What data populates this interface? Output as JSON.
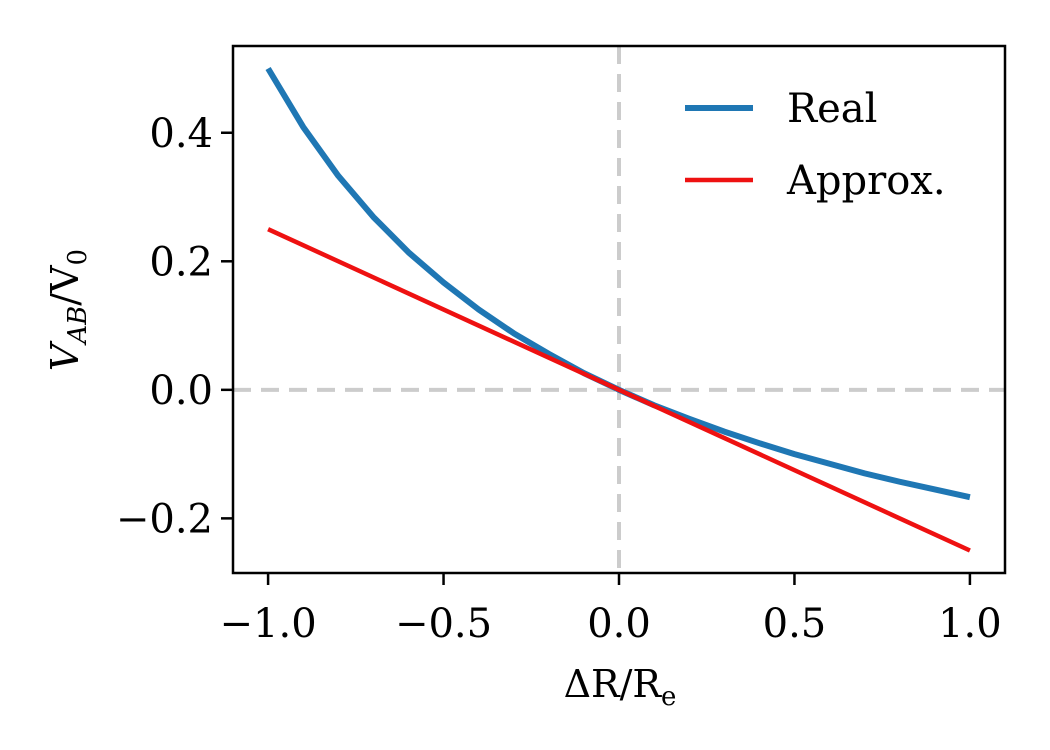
{
  "chart_data": {
    "type": "line",
    "title": "",
    "xlabel": "ΔR/R",
    "xlabel_sub": "e",
    "ylabel": "V",
    "ylabel_sub": "AB",
    "ylabel_tail": "/V",
    "ylabel_tail_sub": "0",
    "xlim": [
      -1.1,
      1.1
    ],
    "ylim": [
      -0.285,
      0.535
    ],
    "x_ticks": [
      -1.0,
      -0.5,
      0.0,
      0.5,
      1.0
    ],
    "x_tick_labels": [
      "−1.0",
      "−0.5",
      "0.0",
      "0.5",
      "1.0"
    ],
    "y_ticks": [
      -0.2,
      0.0,
      0.2,
      0.4
    ],
    "y_tick_labels": [
      "−0.2",
      "0.0",
      "0.2",
      "0.4"
    ],
    "grid": false,
    "reference_lines": [
      {
        "orientation": "vertical",
        "value": 0.0,
        "style": "dashed",
        "color": "#cccccc"
      },
      {
        "orientation": "horizontal",
        "value": 0.0,
        "style": "dashed",
        "color": "#cccccc"
      }
    ],
    "legend_position": "top-right",
    "series": [
      {
        "name": "Real",
        "color": "#1f77b4",
        "x": [
          -1.0,
          -0.9,
          -0.8,
          -0.7,
          -0.6,
          -0.5,
          -0.4,
          -0.3,
          -0.2,
          -0.1,
          0.0,
          0.1,
          0.2,
          0.3,
          0.4,
          0.5,
          0.6,
          0.7,
          0.8,
          0.9,
          1.0
        ],
        "y": [
          0.5,
          0.409,
          0.333,
          0.269,
          0.214,
          0.167,
          0.125,
          0.088,
          0.056,
          0.026,
          0.0,
          -0.024,
          -0.045,
          -0.065,
          -0.083,
          -0.1,
          -0.115,
          -0.13,
          -0.143,
          -0.155,
          -0.167
        ]
      },
      {
        "name": "Approx.",
        "color": "#ee1111",
        "x": [
          -1.0,
          1.0
        ],
        "y": [
          0.25,
          -0.25
        ]
      }
    ]
  }
}
